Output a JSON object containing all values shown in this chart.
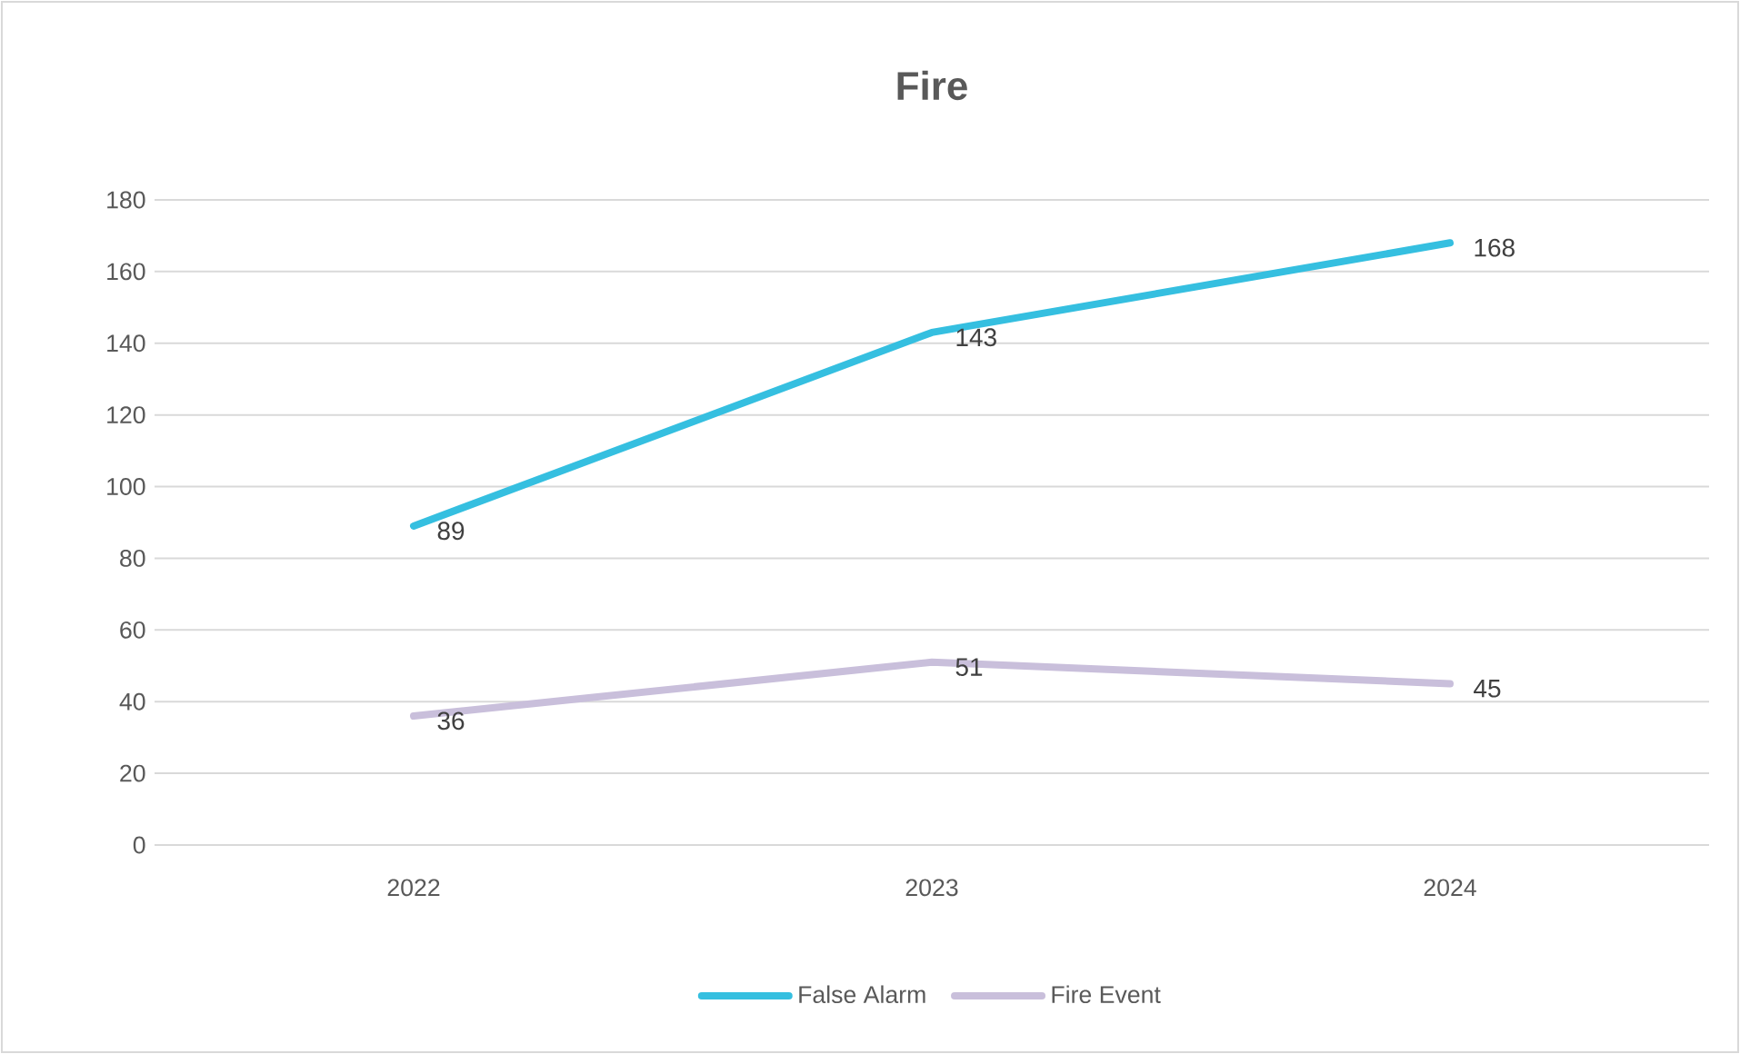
{
  "chart_data": {
    "type": "line",
    "title": "Fire",
    "categories": [
      "2022",
      "2023",
      "2024"
    ],
    "series": [
      {
        "name": "False Alarm",
        "color": "#35bfe0",
        "values": [
          89,
          143,
          168
        ]
      },
      {
        "name": "Fire Event",
        "color": "#c9bfdb",
        "values": [
          36,
          51,
          45
        ]
      }
    ],
    "ylim": [
      0,
      180
    ],
    "yticks": [
      0,
      20,
      40,
      60,
      80,
      100,
      120,
      140,
      160,
      180
    ],
    "grid": "y",
    "legend": "bottom",
    "data_labels": true,
    "marker": "none",
    "line_style": "solid"
  }
}
